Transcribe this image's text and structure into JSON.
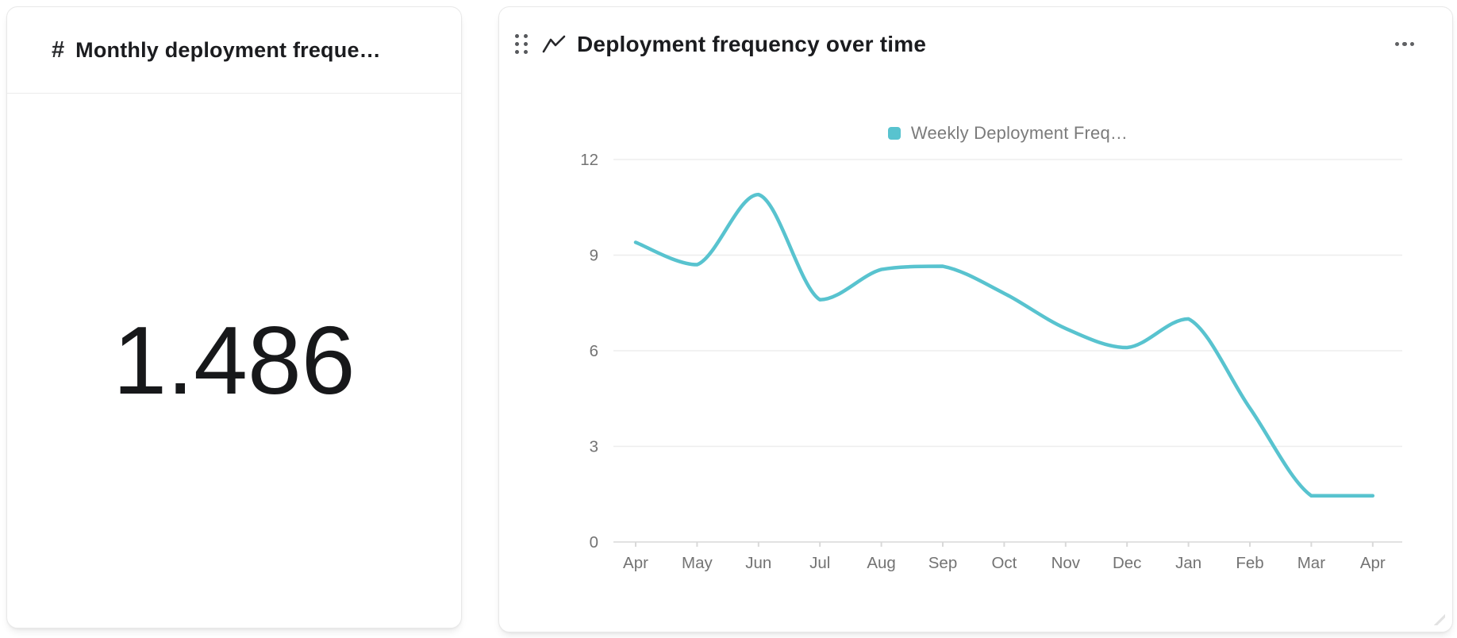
{
  "cards": {
    "metric": {
      "icon_glyph": "#",
      "title": "Monthly deployment frequen…",
      "value": "1.486"
    },
    "chart": {
      "title": "Deployment frequency over time",
      "legend": {
        "label": "Weekly Deployment Freq…",
        "swatch_color": "#58C3CF"
      }
    }
  },
  "chart_data": {
    "type": "line",
    "title": "Deployment frequency over time",
    "categories": [
      "Apr",
      "May",
      "Jun",
      "Jul",
      "Aug",
      "Sep",
      "Oct",
      "Nov",
      "Dec",
      "Jan",
      "Feb",
      "Mar",
      "Apr"
    ],
    "series": [
      {
        "name": "Weekly Deployment Freq…",
        "color": "#58C3CF",
        "values": [
          9.4,
          8.7,
          10.9,
          7.6,
          8.55,
          8.65,
          7.8,
          6.7,
          6.1,
          7.0,
          4.2,
          1.45,
          1.45
        ]
      }
    ],
    "xlabel": "",
    "ylabel": "",
    "ylim": [
      0,
      12
    ],
    "yticks": [
      0,
      3,
      6,
      9,
      12
    ],
    "grid": true,
    "smooth": true,
    "legend_position": "top"
  },
  "colors": {
    "accent": "#58C3CF",
    "grid_line": "#ededed",
    "axis_line": "#e2e2e2",
    "tick_mark": "#d9d9d9",
    "axis_text": "#737373",
    "title_text": "#1b1c1f",
    "card_border": "#e8e8e8"
  }
}
